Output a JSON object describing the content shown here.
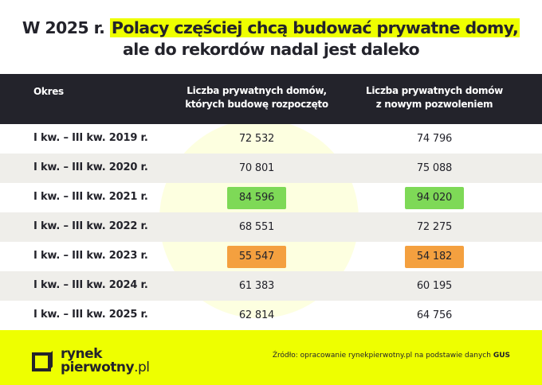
{
  "title": {
    "prefix": "W 2025 r.",
    "highlight": "Polacy częściej chcą budować prywatne domy,",
    "line2": "ale do rekordów nadal jest daleko"
  },
  "table": {
    "headers": [
      "Okres",
      "Liczba prywatnych domów, których budowę rozpoczęto",
      "Liczba prywatnych domów z nowym pozwoleniem"
    ],
    "header_lines": {
      "col2a": "Liczba prywatnych domów,",
      "col2b": "których budowę rozpoczęto",
      "col3a": "Liczba prywatnych domów",
      "col3b": "z nowym pozwoleniem"
    },
    "rows": [
      {
        "period": "I kw. – III kw. 2019 r.",
        "started": "72 532",
        "permits": "74 796"
      },
      {
        "period": "I kw. – III kw. 2020 r.",
        "started": "70 801",
        "permits": "75 088"
      },
      {
        "period": "I kw. – III kw. 2021 r.",
        "started": "84 596",
        "permits": "94 020",
        "highlight": "#7ed957"
      },
      {
        "period": "I kw. – III kw. 2022 r.",
        "started": "68 551",
        "permits": "72 275"
      },
      {
        "period": "I kw. – III kw. 2023 r.",
        "started": "55 547",
        "permits": "54 182",
        "highlight": "#f4a03f"
      },
      {
        "period": "I kw. – III kw. 2024 r.",
        "started": "61 383",
        "permits": "60 195"
      },
      {
        "period": "I kw. – III kw. 2025 r.",
        "started": "62 814",
        "permits": "64 756"
      }
    ]
  },
  "footer": {
    "logo_line1": "rynek",
    "logo_line2": "pierwotny",
    "logo_suffix": ".pl",
    "source": "Źródło: opracowanie rynekpierwotny.pl na podstawie danych ",
    "source_bold": "GUS"
  },
  "colors": {
    "accent": "#eeff00",
    "dark": "#23232b",
    "max": "#7ed957",
    "min": "#f4a03f"
  }
}
